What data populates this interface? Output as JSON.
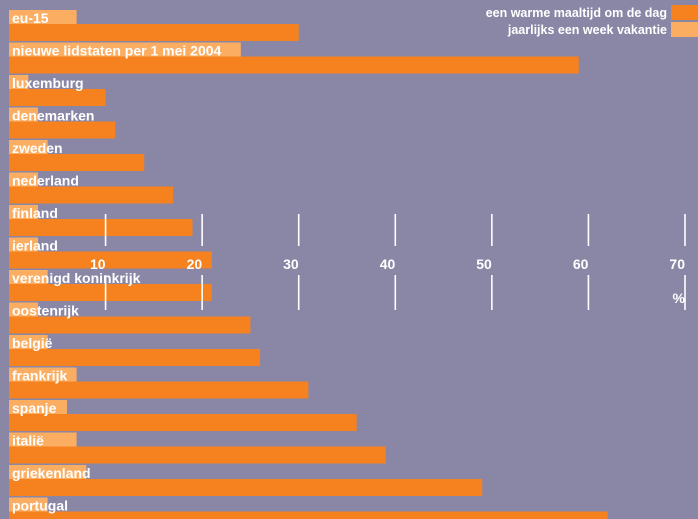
{
  "chart_data": {
    "type": "bar",
    "orientation": "horizontal",
    "categories": [
      "eu-15",
      "nieuwe lidstaten per 1 mei 2004",
      "luxemburg",
      "denemarken",
      "zweden",
      "nederland",
      "finland",
      "ierland",
      "verenigd koninkrijk",
      "oostenrijk",
      "belgië",
      "frankrijk",
      "spanje",
      "italië",
      "griekenland",
      "portugal"
    ],
    "series": [
      {
        "name": "een warme maaltijd om de dag",
        "color": "#f5811f",
        "values": [
          30,
          59,
          10,
          11,
          14,
          17,
          19,
          21,
          21,
          25,
          26,
          31,
          36,
          39,
          49,
          62
        ]
      },
      {
        "name": "jaarlijks een week vakantie",
        "color": "#fbae62",
        "values": [
          7,
          24,
          2,
          3,
          4,
          3,
          3,
          3,
          4,
          3,
          4,
          7,
          6,
          7,
          8,
          4
        ]
      }
    ],
    "xlim": [
      0,
      70
    ],
    "xticks": [
      "10",
      "20",
      "30",
      "40",
      "50",
      "60",
      "70"
    ],
    "xlabel": "%",
    "legend_position": "top-right",
    "background": "#8a87a6",
    "grid": false
  }
}
